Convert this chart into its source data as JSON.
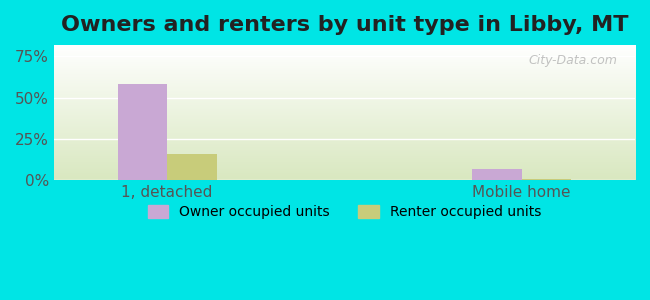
{
  "title": "Owners and renters by unit type in Libby, MT",
  "categories": [
    "1, detached",
    "Mobile home"
  ],
  "owner_values": [
    58.0,
    7.0
  ],
  "renter_values": [
    16.0,
    1.0
  ],
  "owner_color": "#c9a8d4",
  "renter_color": "#c8cc7a",
  "owner_label": "Owner occupied units",
  "renter_label": "Renter occupied units",
  "yticks": [
    0,
    25,
    50,
    75
  ],
  "ytick_labels": [
    "0%",
    "25%",
    "50%",
    "75%"
  ],
  "ylim": [
    0,
    82
  ],
  "bg_outer": "#00e5e5",
  "bg_plot_top": "#ffffff",
  "bg_plot_bottom": "#d9e8c0",
  "watermark": "City-Data.com",
  "bar_width": 0.35,
  "group_positions": [
    1.0,
    3.5
  ],
  "title_fontsize": 16,
  "axis_label_fontsize": 11,
  "legend_fontsize": 10
}
